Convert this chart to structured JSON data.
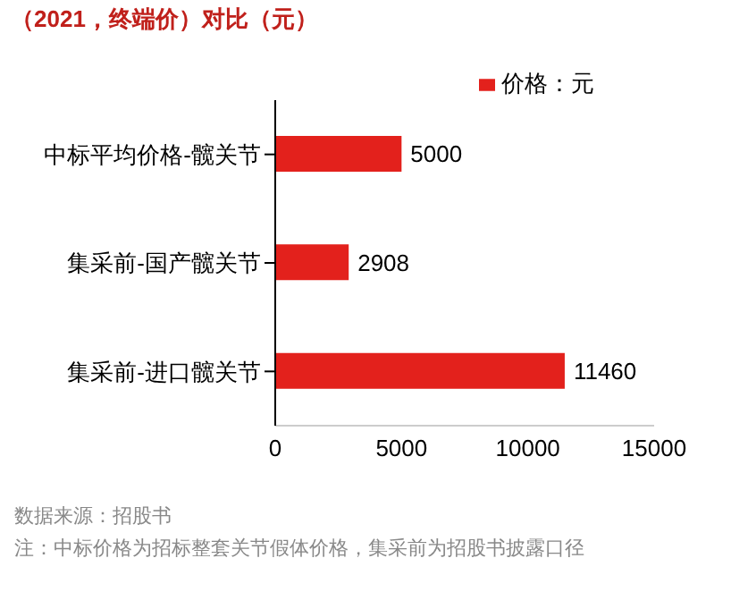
{
  "chart_data": {
    "type": "bar",
    "orientation": "horizontal",
    "title": "（2021，终端价）对比（元）",
    "categories": [
      "中标平均价格-髋关节",
      "集采前-国产髋关节",
      "集采前-进口髋关节"
    ],
    "series": [
      {
        "name": "价格：元",
        "color": "#e3211c",
        "values": [
          5000,
          2908,
          11460
        ]
      }
    ],
    "xlim": [
      0,
      15000
    ],
    "xticks": [
      0,
      5000,
      10000,
      15000
    ],
    "grid": false,
    "legend": "top",
    "data_labels": true,
    "annotations": [
      "数据来源：招股书",
      "注：中标价格为招标整套关节假体价格，集采前为招股书披露口径"
    ]
  }
}
